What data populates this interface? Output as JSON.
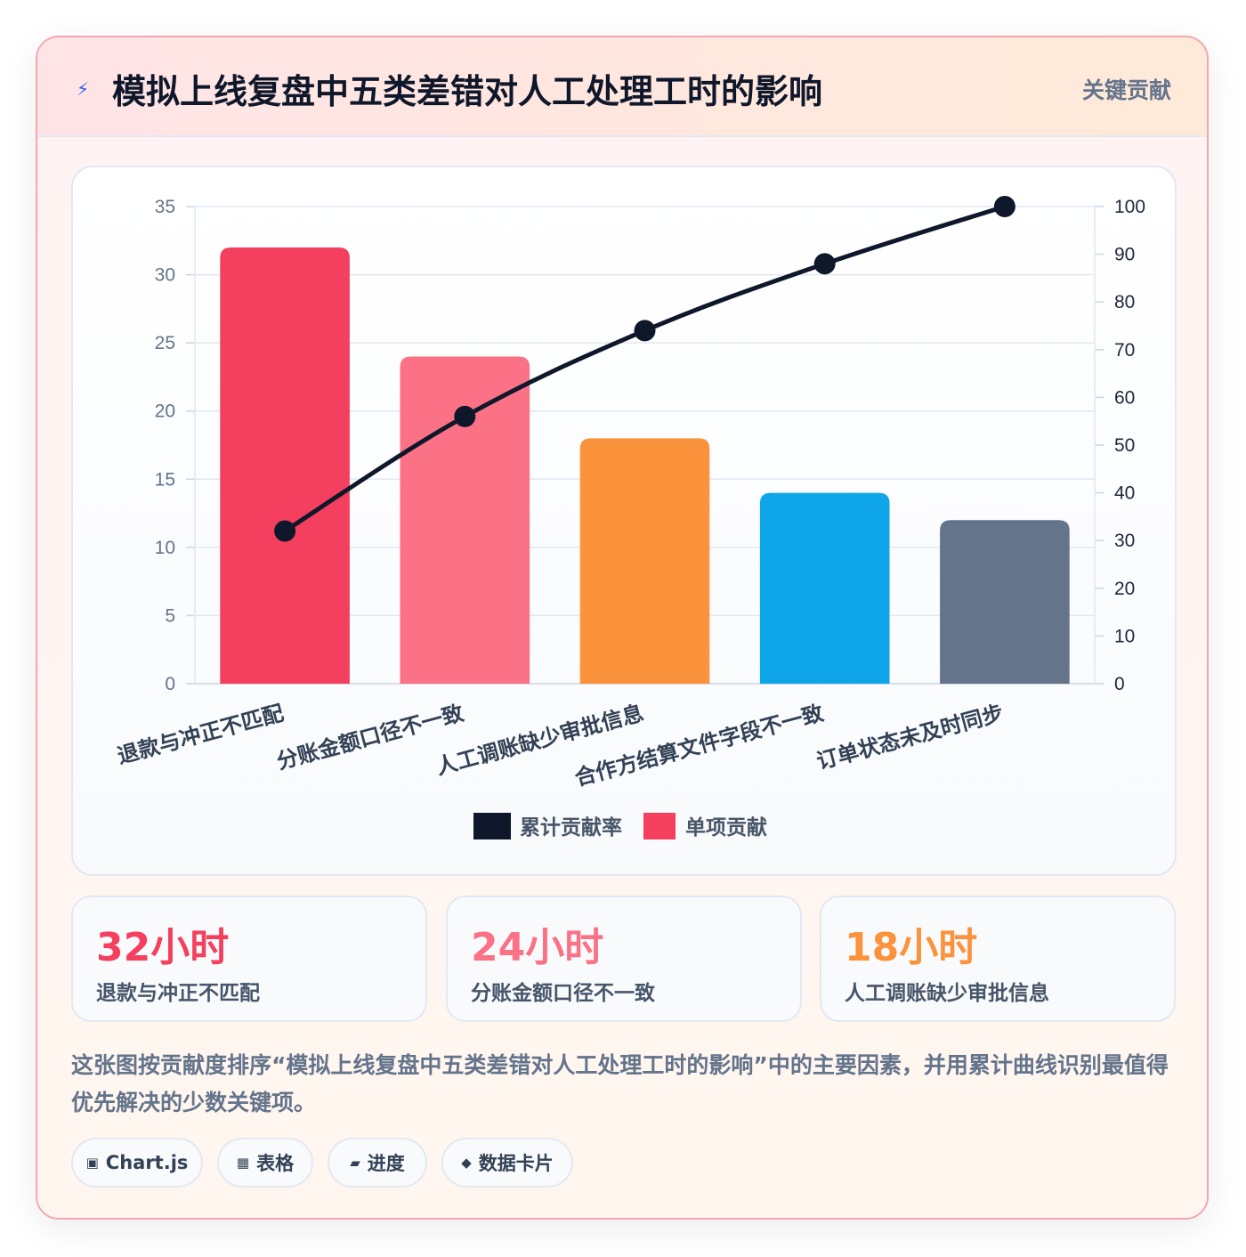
{
  "header": {
    "title": "模拟上线复盘中五类差错对人工处理工时的影响",
    "badge": "关键贡献"
  },
  "chart_data": {
    "type": "bar",
    "categories": [
      "退款与冲正不匹配",
      "分账金额口径不一致",
      "人工调账缺少审批信息",
      "合作方结算文件字段不一致",
      "订单状态未及时同步"
    ],
    "series": [
      {
        "name": "单项贡献",
        "type": "bar",
        "axis": "left",
        "values": [
          32,
          24,
          18,
          14,
          12
        ],
        "colors": [
          "#f43f5e",
          "#fb7185",
          "#fb923c",
          "#0ea5e9",
          "#64748b"
        ]
      },
      {
        "name": "累计贡献率",
        "type": "line",
        "axis": "right",
        "values": [
          32,
          56,
          74,
          88,
          100
        ],
        "color": "#0f172a"
      }
    ],
    "y_left": {
      "min": 0,
      "max": 35,
      "ticks": [
        0,
        5,
        10,
        15,
        20,
        25,
        30,
        35
      ]
    },
    "y_right": {
      "min": 0,
      "max": 100,
      "ticks": [
        0,
        10,
        20,
        30,
        40,
        50,
        60,
        70,
        80,
        90,
        100
      ]
    },
    "grid": true,
    "legend_position": "bottom"
  },
  "stats": [
    {
      "value": "32小时",
      "label": "退款与冲正不匹配",
      "color": "#f43f5e"
    },
    {
      "value": "24小时",
      "label": "分账金额口径不一致",
      "color": "#fb7185"
    },
    {
      "value": "18小时",
      "label": "人工调账缺少审批信息",
      "color": "#fb923c"
    }
  ],
  "description": "这张图按贡献度排序“模拟上线复盘中五类差错对人工处理工时的影响”中的主要因素，并用累计曲线识别最值得优先解决的少数关键项。",
  "chips": [
    {
      "icon": "▣",
      "icon_name": "chart-icon",
      "label": "Chart.js"
    },
    {
      "icon": "▦",
      "icon_name": "table-icon",
      "label": "表格"
    },
    {
      "icon": "▰",
      "icon_name": "progress-icon",
      "label": "进度"
    },
    {
      "icon": "◆",
      "icon_name": "card-icon",
      "label": "数据卡片"
    }
  ]
}
